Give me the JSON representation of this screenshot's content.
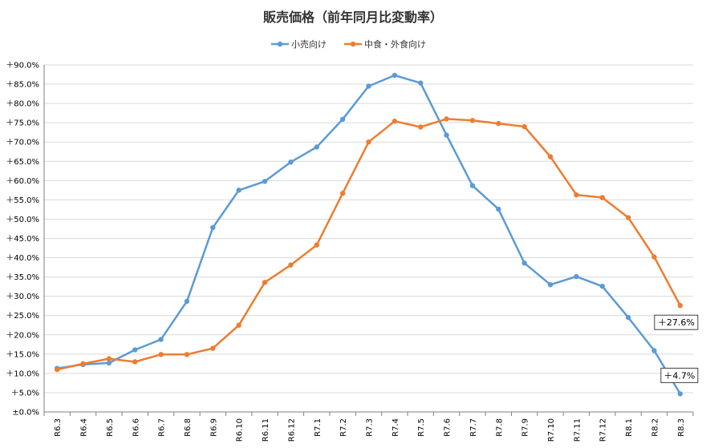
{
  "chart_data": {
    "type": "line",
    "title": "販売価格（前年同月比変動率）",
    "categories": [
      "R6.3",
      "R6.4",
      "R6.5",
      "R6.6",
      "R6.7",
      "R6.8",
      "R6.9",
      "R6.10",
      "R6.11",
      "R6.12",
      "R7.1",
      "R7.2",
      "R7.3",
      "R7.4",
      "R7.5",
      "R7.6",
      "R7.7",
      "R7.8",
      "R7.9",
      "R7.10",
      "R7.11",
      "R7.12",
      "R8.1",
      "R8.2",
      "R8.3"
    ],
    "series": [
      {
        "name": "小売向け",
        "color": "#5B9BD5",
        "values": [
          11.3,
          12.3,
          12.7,
          16.1,
          18.8,
          28.7,
          47.8,
          57.5,
          59.8,
          64.8,
          68.7,
          75.9,
          84.5,
          87.3,
          85.3,
          71.8,
          58.7,
          52.6,
          38.6,
          33.0,
          35.1,
          32.6,
          24.5,
          15.9,
          4.7
        ]
      },
      {
        "name": "中食・外食向け",
        "color": "#ED7D31",
        "values": [
          11.0,
          12.5,
          13.8,
          13.0,
          14.9,
          14.9,
          16.5,
          22.5,
          33.6,
          38.1,
          43.3,
          56.7,
          70.0,
          75.4,
          73.9,
          76.0,
          75.6,
          74.8,
          74.0,
          66.2,
          56.3,
          55.6,
          50.4,
          40.2,
          27.6
        ]
      }
    ],
    "ylim": [
      0,
      90
    ],
    "yticks": [
      0,
      5,
      10,
      15,
      20,
      25,
      30,
      35,
      40,
      45,
      50,
      55,
      60,
      65,
      70,
      75,
      80,
      85,
      90
    ],
    "ytick_labels": [
      "±0.0%",
      "＋5.0%",
      "＋10.0%",
      "＋15.0%",
      "＋20.0%",
      "＋25.0%",
      "＋30.0%",
      "＋35.0%",
      "＋40.0%",
      "＋45.0%",
      "＋50.0%",
      "＋55.0%",
      "＋60.0%",
      "＋65.0%",
      "＋70.0%",
      "＋75.0%",
      "＋80.0%",
      "＋85.0%",
      "＋90.0%"
    ],
    "grid": true,
    "legend_position": "top-center",
    "annotations": [
      {
        "series": 1,
        "text": "＋27.6%"
      },
      {
        "series": 0,
        "text": "＋4.7%"
      }
    ]
  }
}
